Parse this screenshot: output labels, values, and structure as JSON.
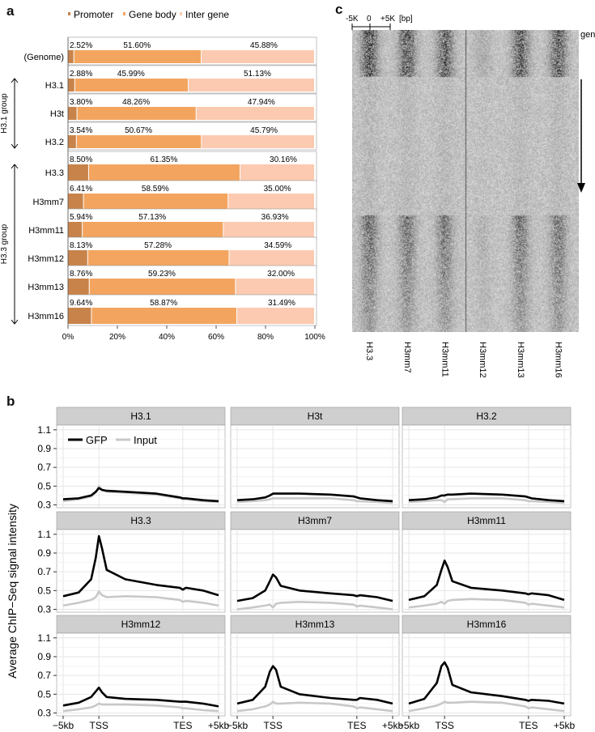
{
  "panel_labels": {
    "a": "a",
    "b": "b",
    "c": "c"
  },
  "chart_data": [
    {
      "type": "bar",
      "stacked": true,
      "orientation": "horizontal",
      "legend": [
        "Promoter",
        "Gene body",
        "Inter gene"
      ],
      "colors": [
        "#c8834a",
        "#f3a560",
        "#fccab0"
      ],
      "categories": [
        "(Genome)",
        "H3.1",
        "H3t",
        "H3.2",
        "H3.3",
        "H3mm7",
        "H3mm11",
        "H3mm12",
        "H3mm13",
        "H3mm16"
      ],
      "series": [
        {
          "name": "Promoter",
          "values": [
            2.52,
            2.88,
            3.8,
            3.54,
            8.5,
            6.41,
            5.94,
            8.13,
            8.76,
            9.64
          ]
        },
        {
          "name": "Gene body",
          "values": [
            51.6,
            45.99,
            48.26,
            50.67,
            61.35,
            58.59,
            57.13,
            57.28,
            59.23,
            58.87
          ]
        },
        {
          "name": "Inter gene",
          "values": [
            45.88,
            51.13,
            47.94,
            45.79,
            30.16,
            35.0,
            36.93,
            34.59,
            32.0,
            31.49
          ]
        }
      ],
      "labels": [
        [
          "2.52%",
          "51.60%",
          "45.88%"
        ],
        [
          "2.88%",
          "45.99%",
          "51.13%"
        ],
        [
          "3.80%",
          "48.26%",
          "47.94%"
        ],
        [
          "3.54%",
          "50.67%",
          "45.79%"
        ],
        [
          "8.50%",
          "61.35%",
          "30.16%"
        ],
        [
          "6.41%",
          "58.59%",
          "35.00%"
        ],
        [
          "5.94%",
          "57.13%",
          "36.93%"
        ],
        [
          "8.13%",
          "57.28%",
          "34.59%"
        ],
        [
          "8.76%",
          "59.23%",
          "32.00%"
        ],
        [
          "9.64%",
          "58.87%",
          "31.49%"
        ]
      ],
      "xticks": [
        "0%",
        "20%",
        "40%",
        "60%",
        "80%",
        "100%"
      ],
      "groups": [
        {
          "label": "H3.1 group",
          "members": [
            "H3.1",
            "H3t",
            "H3.2"
          ]
        },
        {
          "label": "H3.3 group",
          "members": [
            "H3.3",
            "H3mm7",
            "H3mm11",
            "H3mm12",
            "H3mm13",
            "H3mm16"
          ]
        }
      ],
      "xlim": [
        0,
        100
      ]
    },
    {
      "type": "line",
      "facets": true,
      "ylabel": "Average ChIP−Seq signal intensity",
      "legend": [
        "GFP",
        "Input"
      ],
      "colors": {
        "GFP": "#000000",
        "Input": "#c8c8c8"
      },
      "ylim": [
        0.27,
        1.15
      ],
      "yticks": [
        "0.3",
        "0.5",
        "0.7",
        "0.9",
        "1.1"
      ],
      "xticks": [
        "−5kb",
        "TSS",
        "TES",
        "+5kb"
      ],
      "x": [
        0,
        10,
        18,
        21,
        23,
        25,
        28,
        40,
        60,
        75,
        77,
        79,
        90,
        100
      ],
      "panels": [
        {
          "title": "H3.1",
          "GFP": [
            0.36,
            0.37,
            0.4,
            0.44,
            0.48,
            0.46,
            0.45,
            0.44,
            0.42,
            0.38,
            0.37,
            0.37,
            0.35,
            0.34
          ],
          "Input": [
            0.34,
            0.36,
            0.39,
            0.43,
            0.5,
            0.46,
            0.44,
            0.43,
            0.41,
            0.37,
            0.36,
            0.36,
            0.34,
            0.33
          ]
        },
        {
          "title": "H3t",
          "GFP": [
            0.35,
            0.36,
            0.38,
            0.4,
            0.42,
            0.42,
            0.42,
            0.42,
            0.41,
            0.39,
            0.38,
            0.37,
            0.35,
            0.34
          ],
          "Input": [
            0.33,
            0.34,
            0.35,
            0.36,
            0.37,
            0.37,
            0.37,
            0.37,
            0.37,
            0.35,
            0.34,
            0.34,
            0.33,
            0.32
          ]
        },
        {
          "title": "H3.2",
          "GFP": [
            0.35,
            0.36,
            0.38,
            0.4,
            0.4,
            0.41,
            0.41,
            0.42,
            0.41,
            0.39,
            0.38,
            0.37,
            0.35,
            0.34
          ],
          "Input": [
            0.33,
            0.34,
            0.35,
            0.35,
            0.33,
            0.36,
            0.36,
            0.37,
            0.37,
            0.35,
            0.34,
            0.34,
            0.33,
            0.32
          ]
        },
        {
          "title": "H3.3",
          "GFP": [
            0.44,
            0.48,
            0.62,
            0.85,
            1.08,
            0.95,
            0.72,
            0.62,
            0.56,
            0.53,
            0.51,
            0.53,
            0.5,
            0.45
          ],
          "Input": [
            0.34,
            0.37,
            0.4,
            0.43,
            0.49,
            0.45,
            0.43,
            0.44,
            0.43,
            0.4,
            0.38,
            0.39,
            0.37,
            0.34
          ]
        },
        {
          "title": "H3mm7",
          "GFP": [
            0.39,
            0.42,
            0.5,
            0.6,
            0.67,
            0.64,
            0.55,
            0.5,
            0.47,
            0.45,
            0.44,
            0.45,
            0.43,
            0.39
          ],
          "Input": [
            0.3,
            0.32,
            0.34,
            0.35,
            0.32,
            0.36,
            0.37,
            0.38,
            0.37,
            0.35,
            0.33,
            0.34,
            0.32,
            0.3
          ]
        },
        {
          "title": "H3mm11",
          "GFP": [
            0.4,
            0.44,
            0.56,
            0.72,
            0.82,
            0.75,
            0.6,
            0.53,
            0.5,
            0.47,
            0.46,
            0.47,
            0.45,
            0.4
          ],
          "Input": [
            0.32,
            0.34,
            0.36,
            0.38,
            0.36,
            0.39,
            0.4,
            0.41,
            0.4,
            0.37,
            0.35,
            0.36,
            0.34,
            0.32
          ]
        },
        {
          "title": "H3mm12",
          "GFP": [
            0.38,
            0.41,
            0.47,
            0.53,
            0.57,
            0.52,
            0.47,
            0.45,
            0.44,
            0.42,
            0.42,
            0.42,
            0.4,
            0.37
          ],
          "Input": [
            0.32,
            0.34,
            0.36,
            0.38,
            0.4,
            0.39,
            0.39,
            0.39,
            0.38,
            0.36,
            0.35,
            0.35,
            0.33,
            0.32
          ]
        },
        {
          "title": "H3mm13",
          "GFP": [
            0.4,
            0.44,
            0.58,
            0.74,
            0.8,
            0.76,
            0.58,
            0.5,
            0.46,
            0.44,
            0.44,
            0.46,
            0.44,
            0.4
          ],
          "Input": [
            0.32,
            0.34,
            0.37,
            0.39,
            0.42,
            0.4,
            0.4,
            0.41,
            0.4,
            0.37,
            0.35,
            0.36,
            0.34,
            0.32
          ]
        },
        {
          "title": "H3mm16",
          "GFP": [
            0.4,
            0.45,
            0.62,
            0.8,
            0.84,
            0.78,
            0.6,
            0.52,
            0.48,
            0.44,
            0.43,
            0.44,
            0.43,
            0.4
          ],
          "Input": [
            0.32,
            0.35,
            0.38,
            0.4,
            0.42,
            0.41,
            0.41,
            0.42,
            0.41,
            0.37,
            0.35,
            0.36,
            0.34,
            0.32
          ]
        }
      ]
    },
    {
      "type": "heatmap",
      "axis_ticks": [
        "-5K",
        "0",
        "+5K",
        "[bp]"
      ],
      "row_label": "genes",
      "columns": [
        "H3.3",
        "H3mm7",
        "H3mm11",
        "H3mm12",
        "H3mm13",
        "H3mm16"
      ],
      "column_enrichment": [
        1,
        0.9,
        0.85,
        0.2,
        0.9,
        0.9
      ]
    }
  ]
}
